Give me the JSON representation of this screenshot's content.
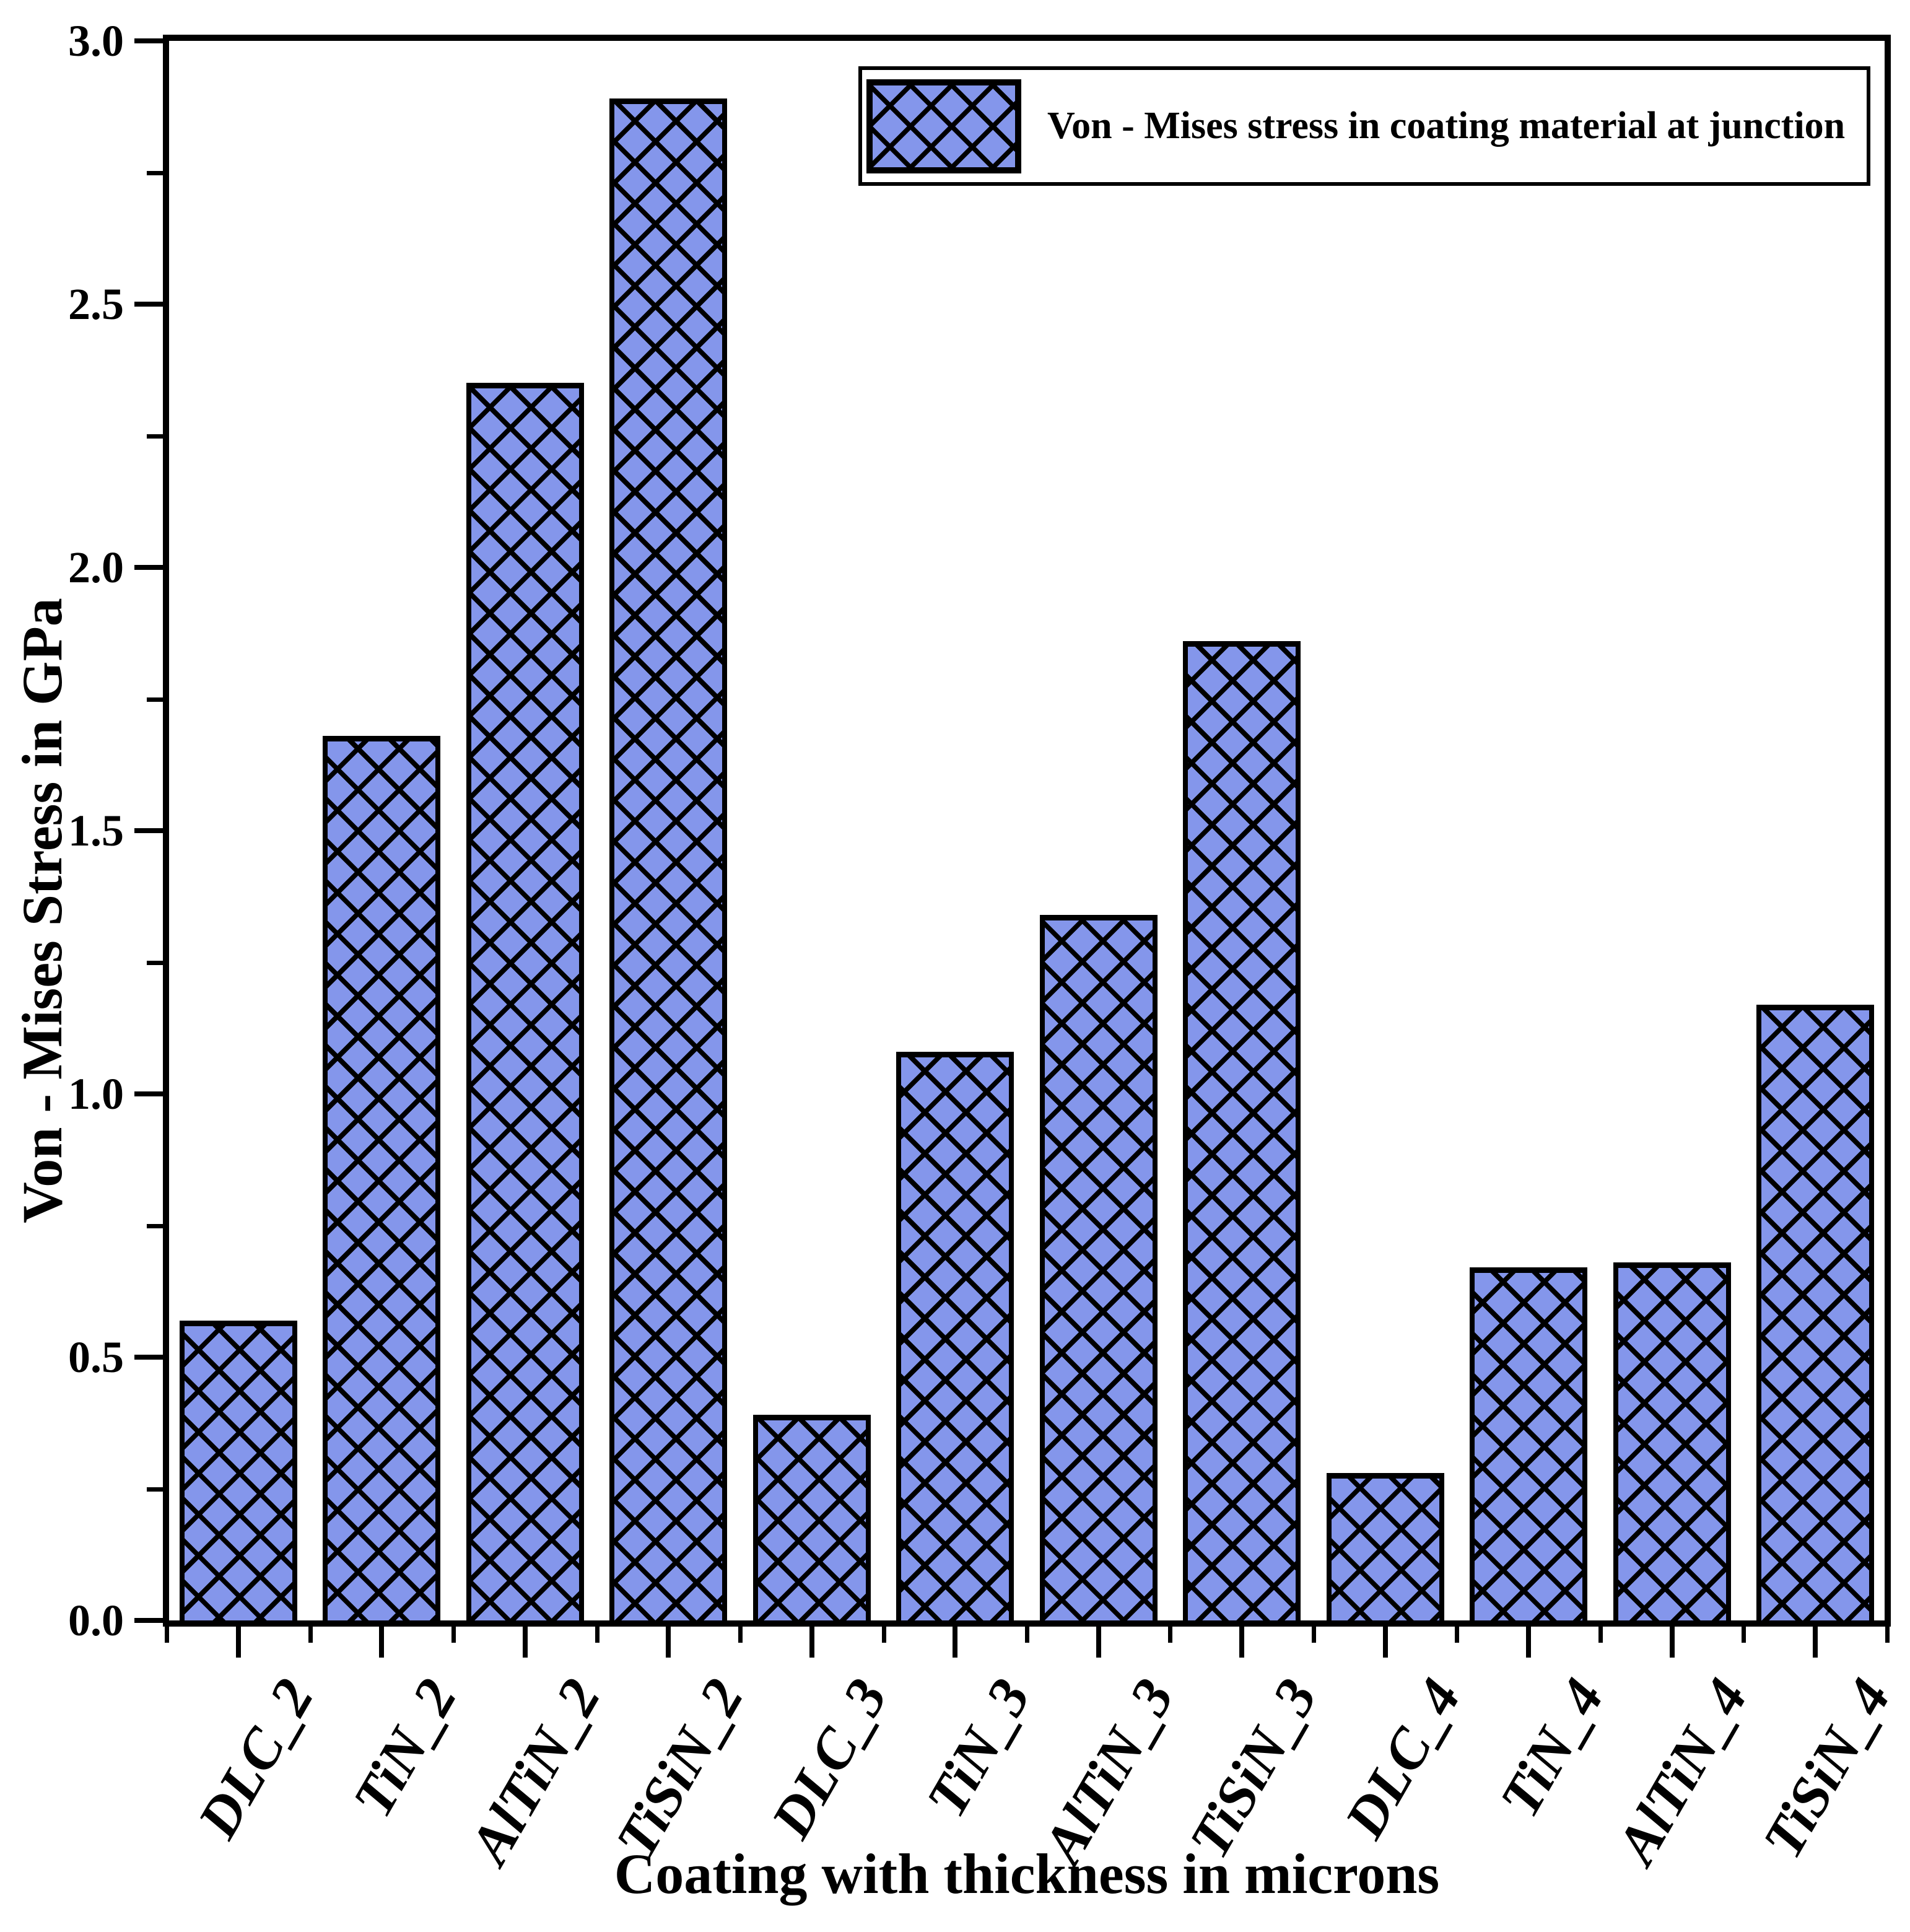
{
  "chart_data": {
    "type": "bar",
    "title": "",
    "xlabel": "Coating with thickness in microns",
    "ylabel": "Von - Mises Stress in GPa",
    "legend_label": "Von - Mises stress in coating material at junction",
    "legend_position": "top-right",
    "categories": [
      "DLC_2",
      "TiN_2",
      "AlTiN_2",
      "TiSiN_2",
      "DLC_3",
      "TiN_3",
      "AlTiN_3",
      "TiSiN_3",
      "DLC_4",
      "TiN_4",
      "AlTiN_4",
      "TiSiN_4"
    ],
    "values": [
      0.57,
      1.68,
      2.35,
      2.89,
      0.39,
      1.08,
      1.34,
      1.86,
      0.28,
      0.67,
      0.68,
      1.17
    ],
    "ylim": [
      0.0,
      3.0
    ],
    "ytick_major_step": 0.5,
    "ytick_minor_step": 0.25,
    "yticklabels": [
      "0.0",
      "0.5",
      "1.0",
      "1.5",
      "2.0",
      "2.5",
      "3.0"
    ],
    "grid": "off",
    "bar_fill_color": "#8496EB",
    "hatch_pattern": "diagonal-crosshatch",
    "hatch_color": "#000000",
    "axis_color": "#000000",
    "background_color": "#ffffff"
  }
}
